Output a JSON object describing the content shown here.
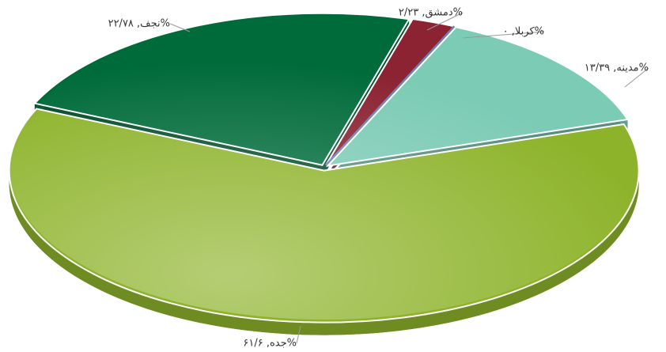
{
  "chart_data": {
    "type": "pie",
    "values": [
      2.23,
      0,
      13.39,
      61.6,
      22.78
    ],
    "value_labels": [
      "%دمشق, ۲/۲۳",
      "%کربلا, ۰",
      "%مدینه, ۱۳/۳۹",
      "%جده, ۶۱/۶",
      "%نجف, ۲۲/۷۸"
    ],
    "colors": [
      "#8b2332",
      "#6b7fb0",
      "#7ccbb5",
      "#8db32a",
      "#006b3a"
    ]
  }
}
